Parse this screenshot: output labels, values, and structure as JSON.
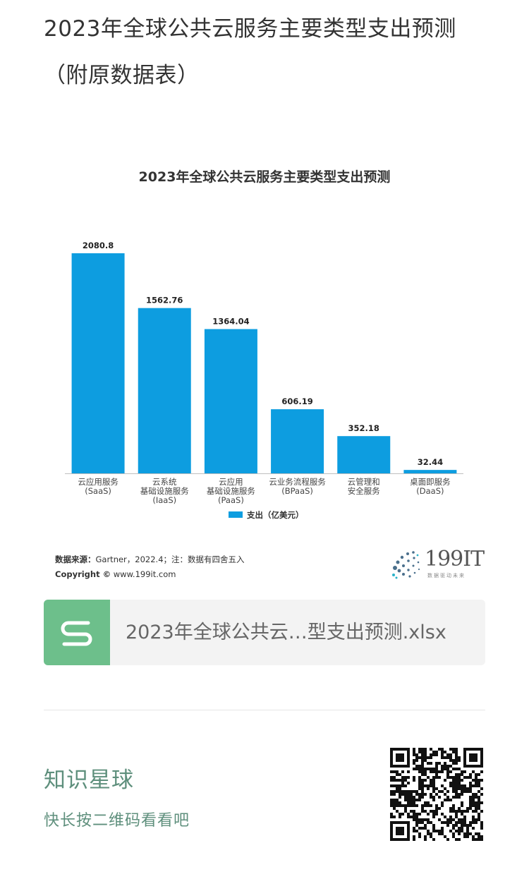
{
  "page": {
    "title_line1": "2023年全球公共云服务主要类型支出预测",
    "title_line2": "（附原数据表）"
  },
  "chart_data": {
    "type": "bar",
    "title": "2023年全球公共云服务主要类型支出预测",
    "categories": [
      [
        "云应用服务",
        "(SaaS)"
      ],
      [
        "云系统",
        "基础设施服务",
        "(IaaS)"
      ],
      [
        "云应用",
        "基础设施服务",
        "(PaaS)"
      ],
      [
        "云业务流程服务",
        "(BPaaS)"
      ],
      [
        "云管理和",
        "安全服务"
      ],
      [
        "桌面即服务",
        "(DaaS)"
      ]
    ],
    "series": [
      {
        "name": "支出（亿美元）",
        "values": [
          2080.8,
          1562.76,
          1364.04,
          606.19,
          352.18,
          32.44
        ]
      }
    ],
    "value_labels": [
      "2080.8",
      "1562.76",
      "1364.04",
      "606.19",
      "352.18",
      "32.44"
    ],
    "ylim": [
      0,
      2080.8
    ],
    "bar_color": "#0d9de0",
    "grid": false,
    "legend_position": "bottom"
  },
  "footer": {
    "source_label": "数据来源：",
    "source_text": "Gartner，2022.4；注：数据有四舍五入",
    "copyright_label": "Copyright ©",
    "copyright_site": "www.199it.com",
    "logo_text": "199IT",
    "logo_sub": "数据驱动未来"
  },
  "file": {
    "icon": "spreadsheet-s-icon",
    "icon_color": "#6dbf8b",
    "name": "2023年全球公共云…型支出预测.xlsx"
  },
  "planet": {
    "title": "知识星球",
    "subtitle": "快长按二维码看看吧"
  }
}
